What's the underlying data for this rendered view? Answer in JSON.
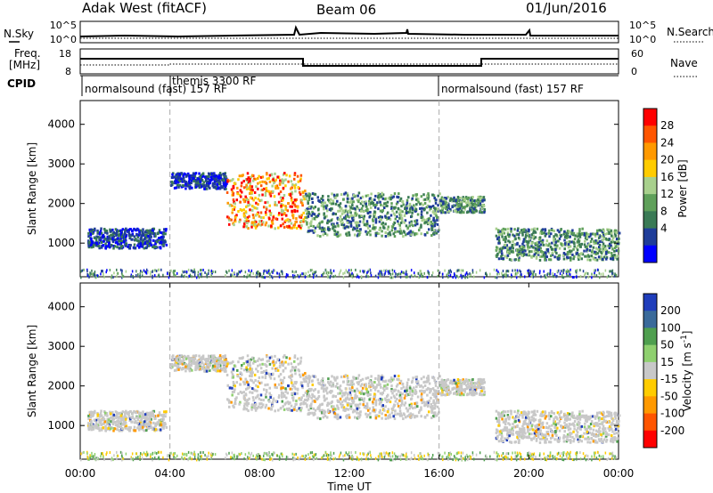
{
  "header": {
    "station": "Adak West (fitACF)",
    "beam": "Beam 06",
    "date": "01/Jun/2016"
  },
  "noise_panel": {
    "left_label": "N.Sky",
    "left_ticks": [
      "10^5",
      "10^0"
    ],
    "right_ticks": [
      "10^5",
      "10^0"
    ],
    "right_label": "N.Search"
  },
  "freq_panel": {
    "left_label_1": "Freq.",
    "left_label_2": "[MHz]",
    "left_ticks": [
      "18",
      "8"
    ],
    "right_ticks": [
      "60",
      "0"
    ],
    "right_label": "Nave"
  },
  "cpid_panel": {
    "label": "CPID",
    "segments": [
      {
        "label": "normalsound (fast) 157 RF",
        "start_hour": 0
      },
      {
        "label": "themis 3300 RF",
        "start_hour": 4
      },
      {
        "label": "normalsound (fast) 157 RF",
        "start_hour": 16
      }
    ]
  },
  "colors": {
    "axis": "#000000",
    "divider": "#aaaaaa"
  },
  "chart_data": [
    {
      "type": "heatmap",
      "name": "power",
      "ylabel": "Slant Range [km]",
      "yticks": [
        1000,
        2000,
        3000,
        4000
      ],
      "ylim": [
        150,
        4600
      ],
      "colorbar": {
        "label": "Power [dB]",
        "ticks": [
          "28",
          "24",
          "20",
          "16",
          "12",
          "8",
          "4"
        ],
        "colors": [
          "#ff0000",
          "#ff5500",
          "#ff9900",
          "#ffcc00",
          "#a8d08d",
          "#5fa05a",
          "#3a7a55",
          "#1f3d99",
          "#0000ff"
        ]
      },
      "features": [
        {
          "x_hours": [
            0.3,
            3.8
          ],
          "range_km": [
            900,
            1400
          ],
          "level": "low"
        },
        {
          "x_hours": [
            4.0,
            6.5
          ],
          "range_km": [
            2400,
            2800
          ],
          "level": "low"
        },
        {
          "x_hours": [
            6.5,
            10.0
          ],
          "range_km": [
            1400,
            2800
          ],
          "level": "high"
        },
        {
          "x_hours": [
            10.0,
            16.0
          ],
          "range_km": [
            1200,
            2300
          ],
          "level": "medium"
        },
        {
          "x_hours": [
            16.0,
            18.0
          ],
          "range_km": [
            1800,
            2200
          ],
          "level": "medium"
        },
        {
          "x_hours": [
            18.5,
            24.0
          ],
          "range_km": [
            600,
            1400
          ],
          "level": "medium"
        }
      ]
    },
    {
      "type": "heatmap",
      "name": "velocity",
      "ylabel": "Slant Range [km]",
      "xlabel": "Time UT",
      "xticks": [
        "00:00",
        "04:00",
        "08:00",
        "12:00",
        "16:00",
        "20:00",
        "00:00"
      ],
      "xlim_hours": [
        0,
        24
      ],
      "yticks": [
        1000,
        2000,
        3000,
        4000
      ],
      "ylim": [
        150,
        4600
      ],
      "colorbar": {
        "label": "Velocity [m s^-1]",
        "ticks": [
          "200",
          "100",
          "50",
          "15",
          "-15",
          "-50",
          "-100",
          "-200"
        ],
        "colors": [
          "#1f3dbb",
          "#3a6a9a",
          "#4f9f4f",
          "#8fd06f",
          "#c8c8c8",
          "#ffcc00",
          "#ff9900",
          "#ff5500",
          "#ff0000"
        ]
      }
    }
  ]
}
